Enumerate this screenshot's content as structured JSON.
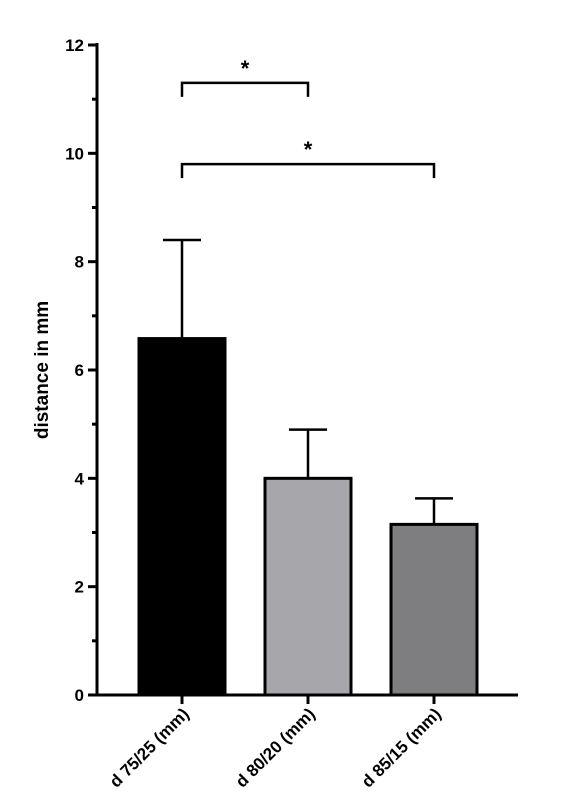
{
  "chart_data": {
    "type": "bar",
    "title": "",
    "xlabel": "",
    "ylabel": "distance in mm",
    "ylim": [
      0,
      12
    ],
    "y_major_ticks": [
      0,
      2,
      4,
      6,
      8,
      10,
      12
    ],
    "y_minor_ticks": [
      1,
      3,
      5,
      7,
      9,
      11
    ],
    "categories": [
      "d 75/25 (mm)",
      "d 80/20 (mm)",
      "d 85/15 (mm)"
    ],
    "values": [
      6.58,
      4.0,
      3.15
    ],
    "errors": [
      1.82,
      0.9,
      0.48
    ],
    "bar_colors": [
      "#000000",
      "#a7a6ab",
      "#7e7e80"
    ],
    "grid": false,
    "significance": [
      {
        "from": 0,
        "to": 1,
        "level": 11.3,
        "label": "*"
      },
      {
        "from": 0,
        "to": 2,
        "level": 9.8,
        "label": "*"
      }
    ]
  }
}
